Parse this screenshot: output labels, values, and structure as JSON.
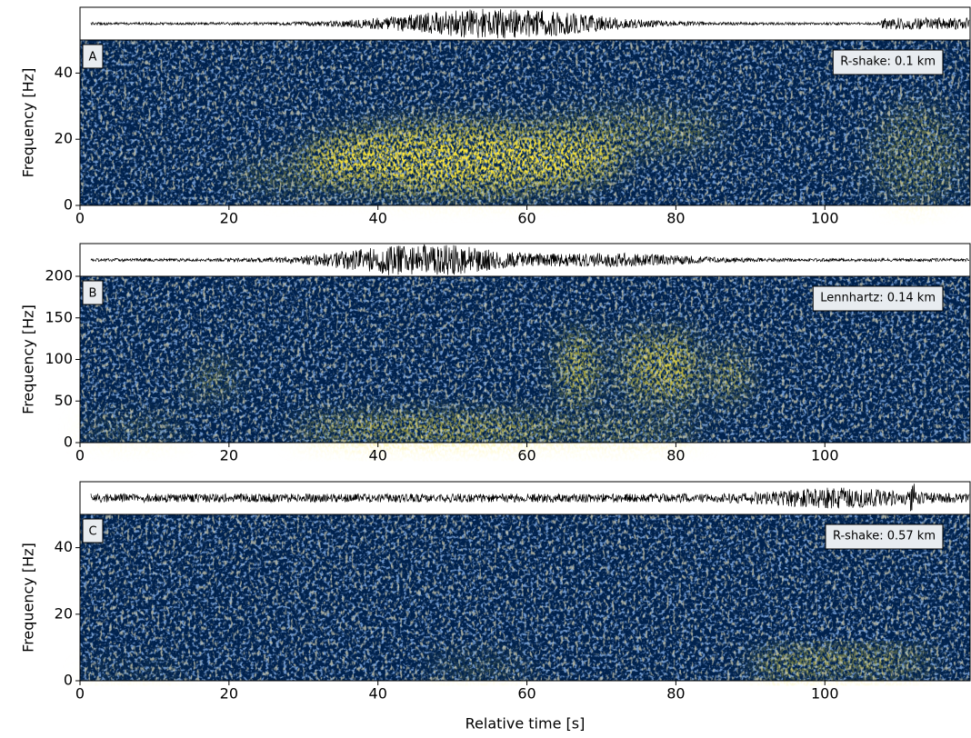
{
  "chart_data": [
    {
      "type": "spectrogram",
      "label": "A",
      "annotation": "R-shake: 0.1 km",
      "ylabel": "Frequency [Hz]",
      "xlim": [
        0,
        119.5
      ],
      "xticks": [
        0,
        20,
        40,
        60,
        80,
        100
      ],
      "ylim": [
        0,
        50
      ],
      "yticks": [
        0,
        20,
        40
      ]
    },
    {
      "type": "spectrogram",
      "label": "B",
      "annotation": "Lennhartz: 0.14 km",
      "ylabel": "Frequency [Hz]",
      "xlim": [
        0,
        119.5
      ],
      "xticks": [
        0,
        20,
        40,
        60,
        80,
        100
      ],
      "ylim": [
        0,
        200
      ],
      "yticks": [
        0,
        50,
        100,
        150,
        200
      ]
    },
    {
      "type": "spectrogram",
      "label": "C",
      "annotation": "R-shake: 0.57 km",
      "ylabel": "Frequency [Hz]",
      "xlabel": "Relative time [s]",
      "xlim": [
        0,
        119.5
      ],
      "xticks": [
        0,
        20,
        40,
        60,
        80,
        100
      ],
      "ylim": [
        0,
        50
      ],
      "yticks": [
        0,
        20,
        40
      ]
    }
  ]
}
